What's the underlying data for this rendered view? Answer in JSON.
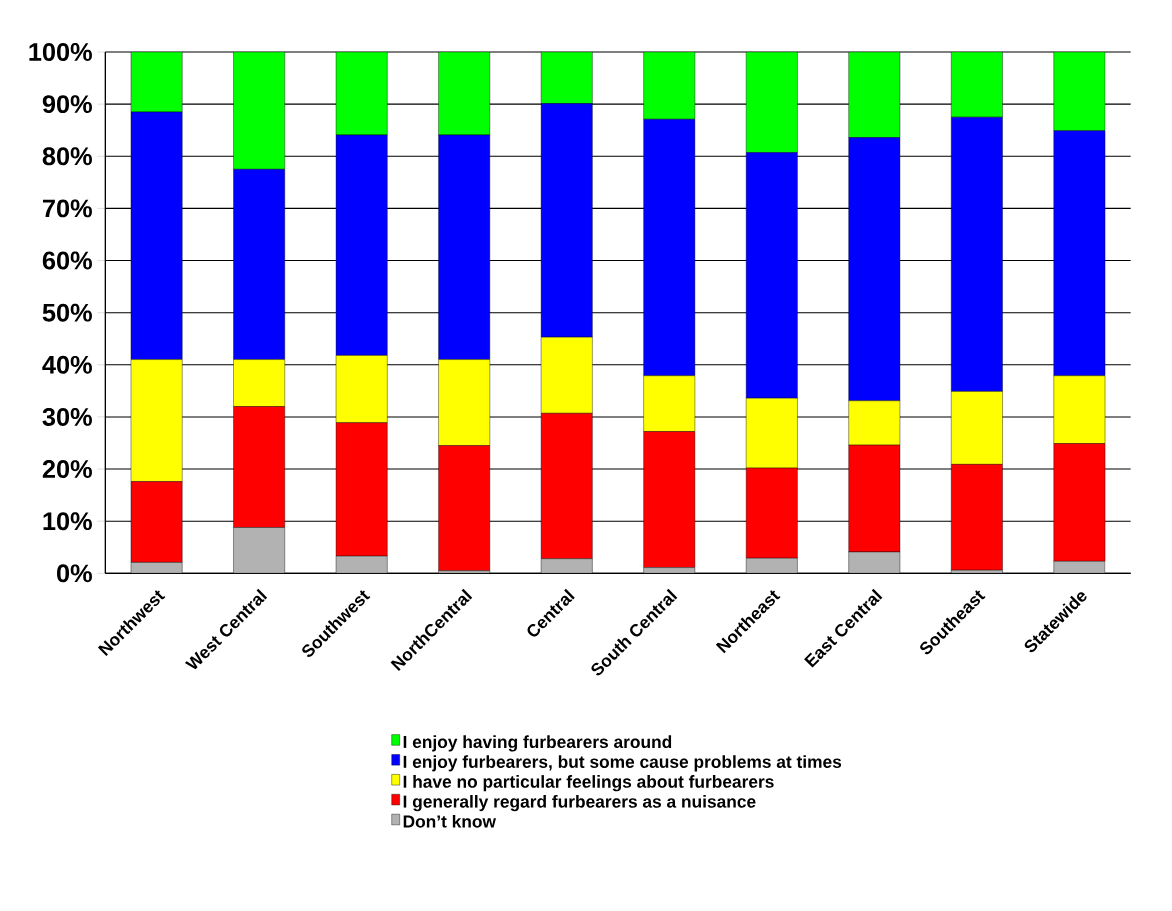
{
  "chart_data": {
    "type": "bar",
    "stacked": true,
    "categories": [
      "Northwest",
      "West Central",
      "Southwest",
      "NorthCentral",
      "Central",
      "South Central",
      "Northeast",
      "East Central",
      "Southeast",
      "Statewide"
    ],
    "series": [
      {
        "name": "Don’t know",
        "color": "#b2b2b2",
        "values": [
          2.1,
          8.8,
          3.3,
          0.5,
          2.8,
          1.1,
          2.9,
          4.1,
          0.6,
          2.3
        ]
      },
      {
        "name": "I generally regard furbearers as a nuisance",
        "color": "#ff0000",
        "values": [
          15.5,
          23.2,
          25.6,
          24.0,
          27.9,
          26.1,
          17.3,
          20.5,
          20.3,
          22.6
        ]
      },
      {
        "name": "I have no particular feelings about furbearers",
        "color": "#ffff00",
        "values": [
          23.4,
          9.0,
          12.9,
          16.5,
          14.6,
          10.7,
          13.4,
          8.5,
          14.0,
          13.0
        ]
      },
      {
        "name": "I enjoy furbearers, but some cause problems at times",
        "color": "#0000ff",
        "values": [
          47.5,
          36.5,
          42.3,
          43.1,
          44.8,
          49.2,
          47.1,
          50.5,
          52.6,
          47.0
        ]
      },
      {
        "name": "I enjoy having furbearers around",
        "color": "#00ff00",
        "values": [
          11.5,
          22.5,
          15.9,
          15.9,
          9.9,
          12.9,
          19.3,
          16.4,
          12.5,
          15.1
        ]
      }
    ],
    "ylim": [
      0,
      100
    ],
    "yticks": [
      {
        "value": 0,
        "label": "0%"
      },
      {
        "value": 10,
        "label": "10%"
      },
      {
        "value": 20,
        "label": "20%"
      },
      {
        "value": 30,
        "label": "30%"
      },
      {
        "value": 40,
        "label": "40%"
      },
      {
        "value": 50,
        "label": "50%"
      },
      {
        "value": 60,
        "label": "60%"
      },
      {
        "value": 70,
        "label": "70%"
      },
      {
        "value": 80,
        "label": "80%"
      },
      {
        "value": 90,
        "label": "90%"
      },
      {
        "value": 100,
        "label": "100%"
      }
    ],
    "grid": "y",
    "legend": "bottom"
  }
}
